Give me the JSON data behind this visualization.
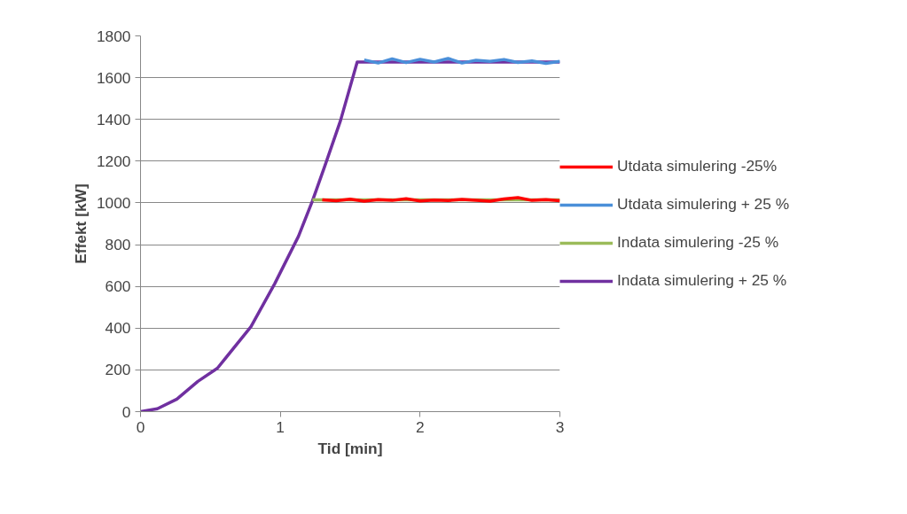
{
  "chart_data": {
    "type": "line",
    "xlabel": "Tid [min]",
    "ylabel": "Effekt [kW]",
    "xlim": [
      0,
      3
    ],
    "xticks": [
      0,
      1,
      2,
      3
    ],
    "ylim": [
      0,
      1800
    ],
    "yticks": [
      0,
      200,
      400,
      600,
      800,
      1000,
      1200,
      1400,
      1600,
      1800
    ],
    "grid": "y",
    "legend": "right",
    "marker": "none",
    "line_style": "solid",
    "series": [
      {
        "name": "Utdata simulering -25%",
        "color": "#ff0000",
        "x": [
          1.3,
          1.4,
          1.5,
          1.6,
          1.7,
          1.8,
          1.9,
          2.0,
          2.1,
          2.2,
          2.3,
          2.4,
          2.5,
          2.6,
          2.7,
          2.8,
          2.9,
          3.0
        ],
        "values": [
          1015,
          1010,
          1018,
          1008,
          1016,
          1012,
          1020,
          1009,
          1014,
          1011,
          1017,
          1013,
          1008,
          1019,
          1025,
          1012,
          1016,
          1010
        ]
      },
      {
        "name": "Utdata simulering + 25 %",
        "color": "#4a8fd9",
        "x": [
          1.6,
          1.7,
          1.8,
          1.9,
          2.0,
          2.1,
          2.2,
          2.3,
          2.4,
          2.5,
          2.6,
          2.7,
          2.8,
          2.9,
          3.0
        ],
        "values": [
          1685,
          1670,
          1690,
          1672,
          1688,
          1675,
          1692,
          1670,
          1683,
          1678,
          1687,
          1673,
          1680,
          1668,
          1678
        ]
      },
      {
        "name": "Indata simulering -25 %",
        "color": "#9bbb59",
        "x": [
          1.23,
          3.0
        ],
        "values": [
          1015,
          1015
        ]
      },
      {
        "name": "Indata simulering + 25 %",
        "color": "#7030a0",
        "x": [
          0,
          0.12,
          0.26,
          0.41,
          0.55,
          0.79,
          0.96,
          1.13,
          1.23,
          1.32,
          1.43,
          1.55,
          3.0
        ],
        "values": [
          0,
          14,
          60,
          145,
          208,
          407,
          613,
          840,
          1010,
          1180,
          1393,
          1675,
          1675
        ]
      }
    ]
  }
}
